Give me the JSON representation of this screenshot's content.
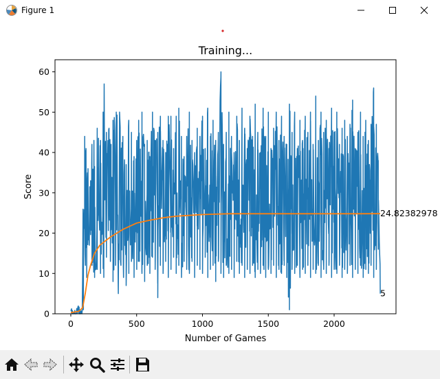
{
  "window": {
    "title": "Figure 1",
    "icon": "matplotlib-logo-icon",
    "controls": [
      "minimize-icon",
      "maximize-icon",
      "close-icon"
    ]
  },
  "toolbar": {
    "tools": [
      "home-icon",
      "back-arrow-icon",
      "forward-arrow-icon",
      "pan-move-icon",
      "zoom-magnifier-icon",
      "configure-subplots-icon",
      "save-floppy-icon"
    ]
  },
  "chart_data": {
    "type": "line",
    "title": "Training...",
    "xlabel": "Number of Games",
    "ylabel": "Score",
    "xlim": [
      -120,
      2470
    ],
    "ylim": [
      0,
      63
    ],
    "xticks": [
      0,
      500,
      1000,
      1500,
      2000
    ],
    "yticks": [
      0,
      10,
      20,
      30,
      40,
      50,
      60
    ],
    "grid": false,
    "n_games": 2350,
    "series": [
      {
        "color": "#1f77b4",
        "values_summary": "per-game score, about 0-2 for the first ~90 games, then oscillating between roughly 5 and 57 (peak 60 near game 1140)",
        "peaks": [
          [
            30,
            1
          ],
          [
            80,
            2
          ],
          [
            90,
            22
          ],
          [
            105,
            44
          ],
          [
            115,
            41
          ],
          [
            130,
            36
          ],
          [
            150,
            33
          ],
          [
            160,
            42
          ],
          [
            175,
            43
          ],
          [
            200,
            46
          ],
          [
            225,
            43
          ],
          [
            245,
            50
          ],
          [
            253,
            57
          ],
          [
            270,
            45
          ],
          [
            290,
            46
          ],
          [
            305,
            42
          ],
          [
            320,
            48
          ],
          [
            345,
            50
          ],
          [
            370,
            50
          ],
          [
            395,
            44
          ],
          [
            420,
            37
          ],
          [
            440,
            48
          ],
          [
            460,
            45
          ],
          [
            480,
            39
          ],
          [
            500,
            43
          ],
          [
            515,
            48
          ],
          [
            540,
            50
          ],
          [
            560,
            42
          ],
          [
            580,
            43
          ],
          [
            600,
            39
          ],
          [
            620,
            50
          ],
          [
            640,
            43
          ],
          [
            660,
            45
          ],
          [
            680,
            49
          ],
          [
            700,
            43
          ],
          [
            720,
            40
          ],
          [
            740,
            49
          ],
          [
            760,
            49
          ],
          [
            780,
            41
          ],
          [
            800,
            49
          ],
          [
            820,
            51
          ],
          [
            840,
            44
          ],
          [
            860,
            39
          ],
          [
            880,
            44
          ],
          [
            900,
            50
          ],
          [
            920,
            43
          ],
          [
            940,
            40
          ],
          [
            960,
            46
          ],
          [
            980,
            44
          ],
          [
            1000,
            49
          ],
          [
            1020,
            41
          ],
          [
            1040,
            51
          ],
          [
            1060,
            44
          ],
          [
            1080,
            48
          ],
          [
            1100,
            43
          ],
          [
            1120,
            45
          ],
          [
            1140,
            60
          ],
          [
            1160,
            42
          ],
          [
            1180,
            45
          ],
          [
            1200,
            50
          ],
          [
            1220,
            44
          ],
          [
            1240,
            40
          ],
          [
            1260,
            49
          ],
          [
            1280,
            43
          ],
          [
            1300,
            51
          ],
          [
            1320,
            46
          ],
          [
            1340,
            41
          ],
          [
            1360,
            49
          ],
          [
            1380,
            44
          ],
          [
            1400,
            52
          ],
          [
            1420,
            45
          ],
          [
            1440,
            40
          ],
          [
            1460,
            51
          ],
          [
            1480,
            44
          ],
          [
            1500,
            50
          ],
          [
            1520,
            41
          ],
          [
            1540,
            46
          ],
          [
            1560,
            50
          ],
          [
            1580,
            43
          ],
          [
            1600,
            49
          ],
          [
            1620,
            44
          ],
          [
            1640,
            42
          ],
          [
            1660,
            52
          ],
          [
            1680,
            45
          ],
          [
            1700,
            50
          ],
          [
            1720,
            41
          ],
          [
            1740,
            48
          ],
          [
            1760,
            43
          ],
          [
            1780,
            49
          ],
          [
            1800,
            45
          ],
          [
            1820,
            50
          ],
          [
            1840,
            42
          ],
          [
            1860,
            54
          ],
          [
            1880,
            43
          ],
          [
            1900,
            50
          ],
          [
            1920,
            45
          ],
          [
            1940,
            48
          ],
          [
            1960,
            41
          ],
          [
            1980,
            51
          ],
          [
            2000,
            45
          ],
          [
            2020,
            50
          ],
          [
            2040,
            42
          ],
          [
            2060,
            46
          ],
          [
            2080,
            48
          ],
          [
            2100,
            44
          ],
          [
            2120,
            47
          ],
          [
            2140,
            53
          ],
          [
            2160,
            41
          ],
          [
            2180,
            45
          ],
          [
            2200,
            50
          ],
          [
            2220,
            44
          ],
          [
            2240,
            48
          ],
          [
            2260,
            43
          ],
          [
            2280,
            47
          ],
          [
            2300,
            56
          ],
          [
            2320,
            47
          ],
          [
            2335,
            38
          ],
          [
            2350,
            5
          ]
        ],
        "troughs": [
          [
            30,
            0
          ],
          [
            80,
            0
          ],
          [
            95,
            1
          ],
          [
            110,
            12
          ],
          [
            120,
            9
          ],
          [
            140,
            17
          ],
          [
            160,
            12
          ],
          [
            180,
            9
          ],
          [
            200,
            11
          ],
          [
            225,
            10
          ],
          [
            250,
            9
          ],
          [
            270,
            14
          ],
          [
            300,
            13
          ],
          [
            320,
            8
          ],
          [
            340,
            12
          ],
          [
            360,
            5
          ],
          [
            380,
            12
          ],
          [
            400,
            9
          ],
          [
            420,
            7
          ],
          [
            440,
            10
          ],
          [
            460,
            13
          ],
          [
            480,
            9
          ],
          [
            500,
            11
          ],
          [
            520,
            13
          ],
          [
            540,
            10
          ],
          [
            560,
            8
          ],
          [
            580,
            12
          ],
          [
            600,
            10
          ],
          [
            620,
            14
          ],
          [
            640,
            11
          ],
          [
            660,
            4
          ],
          [
            680,
            12
          ],
          [
            700,
            10
          ],
          [
            720,
            13
          ],
          [
            740,
            9
          ],
          [
            760,
            11
          ],
          [
            780,
            14
          ],
          [
            800,
            10
          ],
          [
            820,
            12
          ],
          [
            840,
            9
          ],
          [
            860,
            13
          ],
          [
            880,
            11
          ],
          [
            900,
            10
          ],
          [
            920,
            13
          ],
          [
            940,
            9
          ],
          [
            960,
            12
          ],
          [
            980,
            11
          ],
          [
            1000,
            10
          ],
          [
            1020,
            14
          ],
          [
            1040,
            9
          ],
          [
            1060,
            11
          ],
          [
            1080,
            12
          ],
          [
            1100,
            8
          ],
          [
            1120,
            13
          ],
          [
            1140,
            10
          ],
          [
            1160,
            9
          ],
          [
            1180,
            12
          ],
          [
            1200,
            10
          ],
          [
            1220,
            11
          ],
          [
            1240,
            9
          ],
          [
            1260,
            13
          ],
          [
            1280,
            10
          ],
          [
            1300,
            12
          ],
          [
            1320,
            9
          ],
          [
            1340,
            11
          ],
          [
            1360,
            10
          ],
          [
            1380,
            12
          ],
          [
            1400,
            9
          ],
          [
            1420,
            11
          ],
          [
            1440,
            10
          ],
          [
            1460,
            12
          ],
          [
            1480,
            9
          ],
          [
            1500,
            11
          ],
          [
            1520,
            10
          ],
          [
            1540,
            12
          ],
          [
            1560,
            9
          ],
          [
            1580,
            11
          ],
          [
            1600,
            10
          ],
          [
            1620,
            12
          ],
          [
            1640,
            9
          ],
          [
            1660,
            1
          ],
          [
            1680,
            11
          ],
          [
            1700,
            10
          ],
          [
            1720,
            12
          ],
          [
            1740,
            9
          ],
          [
            1760,
            11
          ],
          [
            1780,
            10
          ],
          [
            1800,
            12
          ],
          [
            1820,
            9
          ],
          [
            1840,
            11
          ],
          [
            1860,
            10
          ],
          [
            1880,
            12
          ],
          [
            1900,
            9
          ],
          [
            1920,
            11
          ],
          [
            1940,
            10
          ],
          [
            1960,
            12
          ],
          [
            1980,
            9
          ],
          [
            2000,
            11
          ],
          [
            2020,
            10
          ],
          [
            2040,
            12
          ],
          [
            2060,
            9
          ],
          [
            2080,
            11
          ],
          [
            2100,
            10
          ],
          [
            2120,
            12
          ],
          [
            2140,
            9
          ],
          [
            2160,
            11
          ],
          [
            2180,
            10
          ],
          [
            2200,
            12
          ],
          [
            2220,
            9
          ],
          [
            2240,
            11
          ],
          [
            2260,
            10
          ],
          [
            2280,
            12
          ],
          [
            2300,
            9
          ],
          [
            2320,
            11
          ],
          [
            2335,
            16
          ]
        ]
      },
      {
        "color": "#ff7f0e",
        "values_summary": "running mean score",
        "points": [
          [
            0,
            0.3
          ],
          [
            60,
            0.6
          ],
          [
            90,
            1.5
          ],
          [
            110,
            5
          ],
          [
            130,
            9.5
          ],
          [
            150,
            12
          ],
          [
            180,
            15
          ],
          [
            220,
            17
          ],
          [
            300,
            19
          ],
          [
            400,
            21
          ],
          [
            500,
            22.5
          ],
          [
            600,
            23.2
          ],
          [
            700,
            23.8
          ],
          [
            800,
            24.2
          ],
          [
            900,
            24.4
          ],
          [
            1000,
            24.6
          ],
          [
            1100,
            24.7
          ],
          [
            1200,
            24.8
          ],
          [
            1400,
            24.8
          ],
          [
            1600,
            24.8
          ],
          [
            1800,
            24.8
          ],
          [
            2000,
            24.8
          ],
          [
            2200,
            24.8
          ],
          [
            2350,
            24.82
          ]
        ]
      }
    ],
    "annotations": [
      {
        "text": "24.82382978",
        "x": 2350,
        "y": 24.82
      },
      {
        "text": "5",
        "x": 2350,
        "y": 5
      }
    ],
    "marker": {
      "color": "#d62728"
    }
  }
}
